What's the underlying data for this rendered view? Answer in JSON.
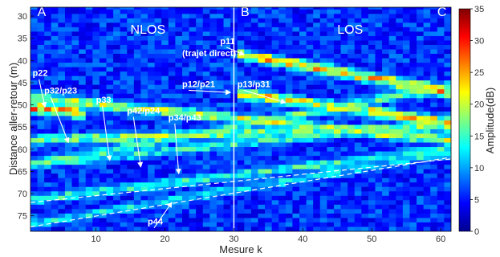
{
  "chart_data": {
    "type": "heatmap",
    "xlabel": "Mesure k",
    "ylabel": "Distance aller-retour (m)",
    "xlim": [
      0.5,
      61.5
    ],
    "ylim": [
      28,
      78.5
    ],
    "x_ticks": [
      10,
      20,
      30,
      40,
      50,
      60
    ],
    "y_ticks": [
      30,
      35,
      40,
      45,
      50,
      55,
      60,
      65,
      70,
      75
    ],
    "y_reversed": true,
    "colorbar": {
      "label": "Amplitude(dB)",
      "range": [
        0,
        35
      ],
      "ticks": [
        0,
        5,
        10,
        15,
        20,
        25,
        30,
        35
      ],
      "colormap": "jet"
    },
    "vertical_line": {
      "x": 30,
      "color": "#ffffff"
    },
    "region_labels": [
      {
        "text": "A",
        "x": 1.5,
        "y": 30
      },
      {
        "text": "NLOS",
        "x": 15,
        "y": 34
      },
      {
        "text": "B",
        "x": 31,
        "y": 30
      },
      {
        "text": "LOS",
        "x": 45,
        "y": 34
      },
      {
        "text": "C",
        "x": 59.5,
        "y": 30
      }
    ],
    "paths": [
      {
        "name": "p11",
        "label": "(trajet direct)",
        "x": [
          31,
          61
        ],
        "y": [
          38.7,
          47
        ],
        "peak": 30
      },
      {
        "name": "p12/p21",
        "x": [
          0.5,
          61
        ],
        "y": [
          48.3,
          58
        ],
        "peak": 24
      },
      {
        "name": "p13/p31",
        "x": [
          31,
          61
        ],
        "y": [
          47.5,
          54
        ],
        "peak": 28
      },
      {
        "name": "p22",
        "x": [
          0.5,
          8
        ],
        "y": [
          50.5,
          52
        ],
        "peak": 32
      },
      {
        "name": "p32/p23",
        "x": [
          0.5,
          61
        ],
        "y": [
          58,
          55
        ],
        "peak": 22
      },
      {
        "name": "p33",
        "x": [
          0.5,
          61
        ],
        "y": [
          63.5,
          46
        ],
        "peak": 20
      },
      {
        "name": "p42/p24",
        "x": [
          0.5,
          61
        ],
        "y": [
          63.5,
          54
        ],
        "peak": 18
      },
      {
        "name": "p34/p43",
        "x": [
          0.5,
          61
        ],
        "y": [
          71.5,
          60
        ],
        "peak": 18
      },
      {
        "name": "p44",
        "x": [
          0.5,
          61
        ],
        "y": [
          77,
          61
        ],
        "peak": 16
      }
    ],
    "dashed_lines": [
      {
        "x": [
          0.5,
          61.5
        ],
        "y": [
          72,
          62.2
        ]
      },
      {
        "x": [
          0.5,
          61.5
        ],
        "y": [
          77.5,
          61.8
        ]
      }
    ],
    "annotations": [
      {
        "text": "p22",
        "x": 0.8,
        "y": 43.5,
        "arrow_to": [
          2.6,
          50.5
        ]
      },
      {
        "text": "p32/p23",
        "x": 2.5,
        "y": 47.5,
        "arrow_to": [
          6,
          58.5
        ]
      },
      {
        "text": "p33",
        "x": 10,
        "y": 49.5,
        "arrow_to": [
          12,
          62.5
        ]
      },
      {
        "text": "p42/p24",
        "x": 14.5,
        "y": 52,
        "arrow_to": [
          16.5,
          64
        ]
      },
      {
        "text": "p34/p43",
        "x": 20.5,
        "y": 53.5,
        "arrow_to": [
          22,
          65.5
        ]
      },
      {
        "text": "p11",
        "x": 28,
        "y": 36.3,
        "arrow_to": [
          31.5,
          38.7
        ]
      },
      {
        "text": "(trajet direct)",
        "x": 22.5,
        "y": 39,
        "arrow_to": null
      },
      {
        "text": "p12/p21",
        "x": 22.5,
        "y": 46,
        "arrow_to": [
          29.5,
          47.2
        ]
      },
      {
        "text": "p13/p31",
        "x": 30.5,
        "y": 46,
        "arrow_to": [
          37.5,
          49.5
        ]
      },
      {
        "text": "p44",
        "x": 17.5,
        "y": 77,
        "arrow_to": [
          21,
          72
        ]
      }
    ]
  }
}
